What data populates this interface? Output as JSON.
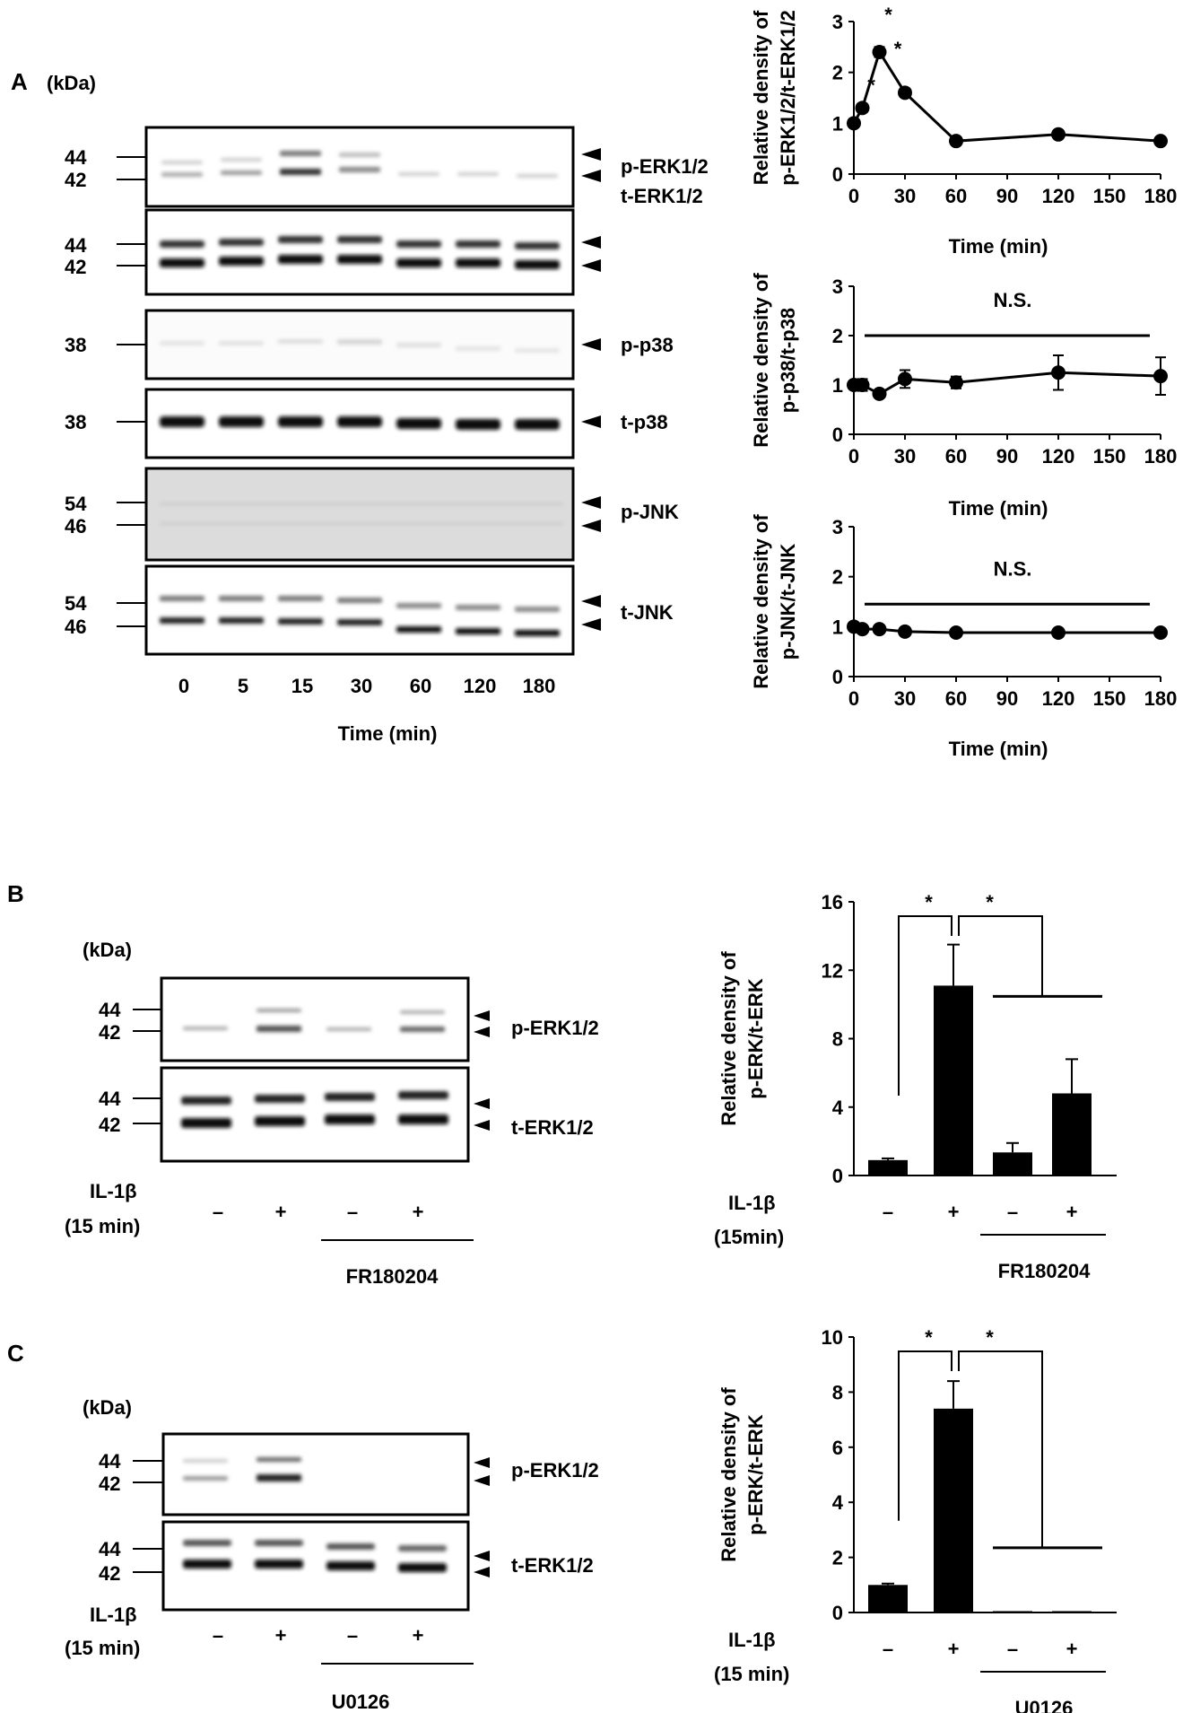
{
  "panels": {
    "A": {
      "letter": "A",
      "kda": "(kDa)",
      "time_label": "Time (min)",
      "lanes": [
        "0",
        "5",
        "15",
        "30",
        "60",
        "120",
        "180"
      ],
      "blots": [
        {
          "name": "p-ERK1/2",
          "markers": [
            "44",
            "42"
          ]
        },
        {
          "name": "t-ERK1/2",
          "markers": [
            "44",
            "42"
          ]
        },
        {
          "name": "p-p38",
          "markers": [
            "38"
          ]
        },
        {
          "name": "t-p38",
          "markers": [
            "38"
          ]
        },
        {
          "name": "p-JNK",
          "markers": [
            "54",
            "46"
          ]
        },
        {
          "name": "t-JNK",
          "markers": [
            "54",
            "46"
          ]
        }
      ]
    },
    "B": {
      "letter": "B",
      "kda": "(kDa)",
      "markers": [
        "44",
        "42",
        "44",
        "42"
      ],
      "blots": [
        "p-ERK1/2",
        "t-ERK1/2"
      ],
      "treatment_line1": "IL-1β",
      "treatment_line2": "(15 min)",
      "signs": [
        "–",
        "+",
        "–",
        "+"
      ],
      "inhibitor": "FR180204"
    },
    "C": {
      "letter": "C",
      "kda": "(kDa)",
      "markers": [
        "44",
        "42",
        "44",
        "42"
      ],
      "blots": [
        "p-ERK1/2",
        "t-ERK1/2"
      ],
      "treatment_line1": "IL-1β",
      "treatment_line2": "(15 min)",
      "signs": [
        "–",
        "+",
        "–",
        "+"
      ],
      "inhibitor": "U0126"
    }
  },
  "chart_data": [
    {
      "type": "line",
      "ylabel_line1": "Relative density of",
      "ylabel_line2": "p-ERK1/2/t-ERK1/2",
      "xlabel": "Time (min)",
      "x": [
        0,
        5,
        15,
        30,
        60,
        120,
        180
      ],
      "y": [
        1.0,
        1.3,
        2.4,
        1.6,
        0.65,
        0.78,
        0.65
      ],
      "err": [
        0.05,
        0.08,
        0.1,
        0.08,
        0.05,
        0.08,
        0.05
      ],
      "xticks": [
        "0",
        "30",
        "60",
        "90",
        "120",
        "150",
        "180"
      ],
      "yticks": [
        "0",
        "1",
        "2",
        "3"
      ],
      "xlim": [
        0,
        180
      ],
      "ylim": [
        0,
        3
      ],
      "annotations": [
        "*",
        "*",
        "*"
      ]
    },
    {
      "type": "line",
      "ylabel_line1": "Relative density of",
      "ylabel_line2": "p-p38/t-p38",
      "xlabel": "Time (min)",
      "x": [
        0,
        5,
        15,
        30,
        60,
        120,
        180
      ],
      "y": [
        1.0,
        1.0,
        0.82,
        1.12,
        1.05,
        1.25,
        1.18
      ],
      "err": [
        0.05,
        0.12,
        0.05,
        0.18,
        0.12,
        0.35,
        0.38
      ],
      "xticks": [
        "0",
        "30",
        "60",
        "90",
        "120",
        "150",
        "180"
      ],
      "yticks": [
        "0",
        "1",
        "2",
        "3"
      ],
      "xlim": [
        0,
        180
      ],
      "ylim": [
        0,
        3
      ],
      "significance": "N.S.",
      "sig_bar_y": 2.0
    },
    {
      "type": "line",
      "ylabel_line1": "Relative density of",
      "ylabel_line2": "p-JNK/t-JNK",
      "xlabel": "Time (min)",
      "x": [
        0,
        5,
        15,
        30,
        60,
        120,
        180
      ],
      "y": [
        1.0,
        0.95,
        0.95,
        0.9,
        0.88,
        0.88,
        0.88
      ],
      "err": [
        0.03,
        0.03,
        0.03,
        0.08,
        0.07,
        0.05,
        0.05
      ],
      "xticks": [
        "0",
        "30",
        "60",
        "90",
        "120",
        "150",
        "180"
      ],
      "yticks": [
        "0",
        "1",
        "2",
        "3"
      ],
      "xlim": [
        0,
        180
      ],
      "ylim": [
        0,
        3
      ],
      "significance": "N.S.",
      "sig_bar_y": 1.45
    },
    {
      "type": "bar",
      "ylabel_line1": "Relative density of",
      "ylabel_line2": "p-ERK/t-ERK",
      "categories": [
        "–",
        "+",
        "–",
        "+"
      ],
      "values": [
        0.9,
        11.1,
        1.35,
        4.8
      ],
      "err": [
        0.1,
        2.4,
        0.55,
        2.0
      ],
      "yticks": [
        "0",
        "4",
        "8",
        "12",
        "16"
      ],
      "ylim": [
        0,
        16
      ],
      "treatment_line1": "IL-1β",
      "treatment_line2": "(15min)",
      "inhibitor": "FR180204",
      "annotations": [
        "*",
        "*"
      ]
    },
    {
      "type": "bar",
      "ylabel_line1": "Relative density of",
      "ylabel_line2": "p-ERK/t-ERK",
      "categories": [
        "–",
        "+",
        "–",
        "+"
      ],
      "values": [
        1.0,
        7.4,
        0.05,
        0.05
      ],
      "err": [
        0.05,
        1.0,
        0.02,
        0.02
      ],
      "yticks": [
        "0",
        "2",
        "4",
        "6",
        "8",
        "10"
      ],
      "ylim": [
        0,
        10
      ],
      "treatment_line1": "IL-1β",
      "treatment_line2": "(15 min)",
      "inhibitor": "U0126",
      "annotations": [
        "*",
        "*"
      ]
    }
  ]
}
